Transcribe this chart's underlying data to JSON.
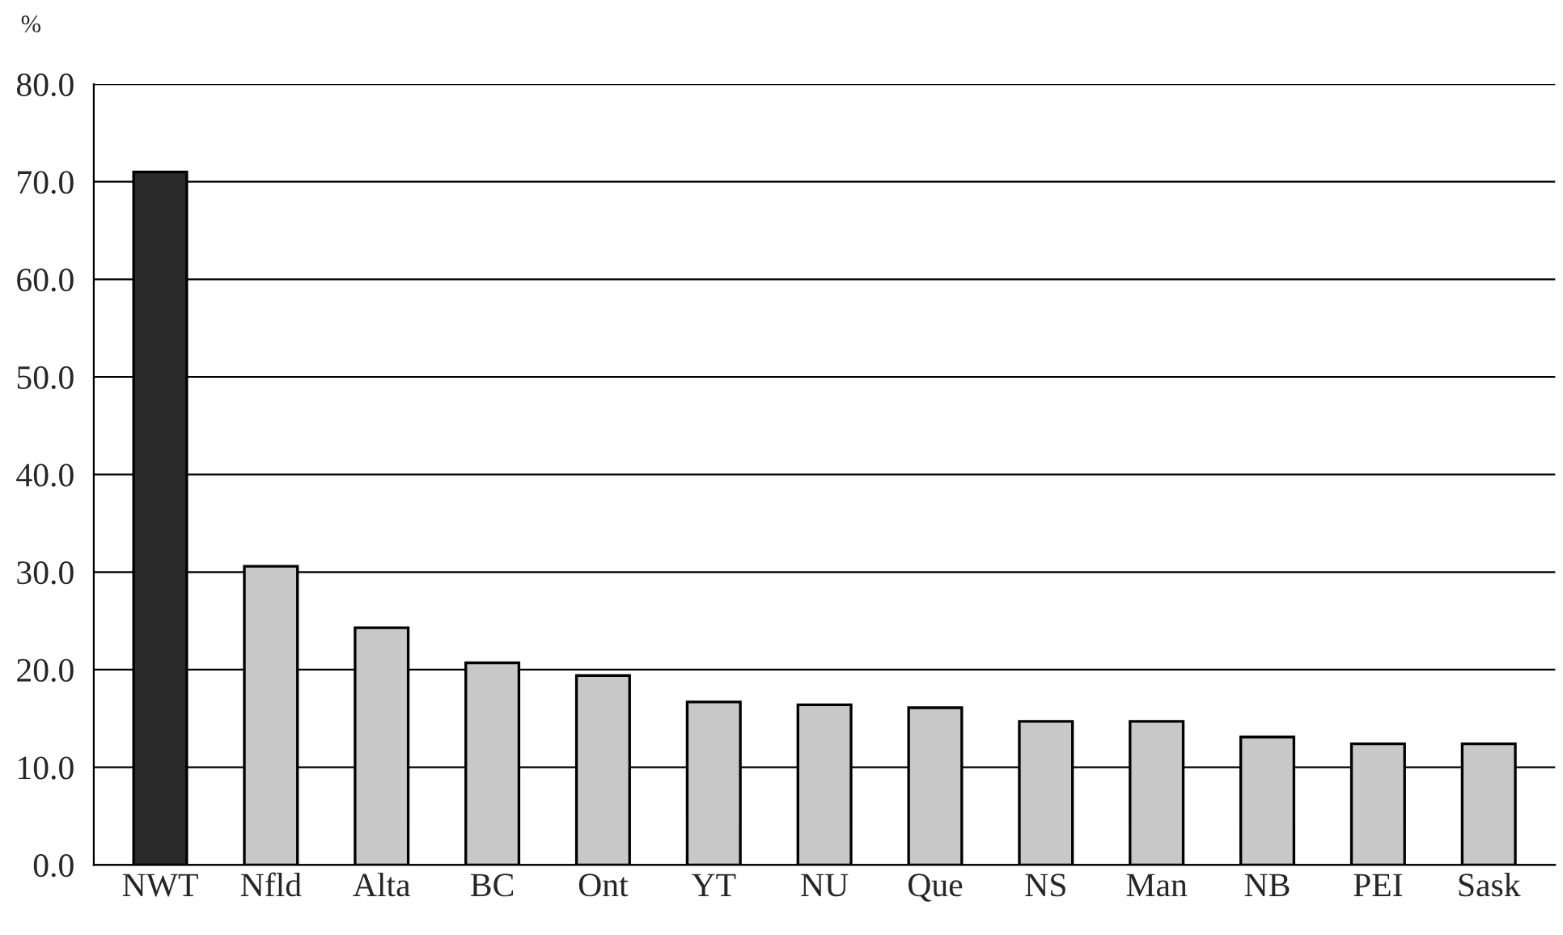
{
  "chart_data": {
    "type": "bar",
    "ylabel": "%",
    "categories": [
      "NWT",
      "Nfld",
      "Alta",
      "BC",
      "Ont",
      "YT",
      "NU",
      "Que",
      "NS",
      "Man",
      "NB",
      "PEI",
      "Sask"
    ],
    "values": [
      71.0,
      30.6,
      24.3,
      20.7,
      19.4,
      16.7,
      16.4,
      16.1,
      14.7,
      14.7,
      13.1,
      12.4,
      12.4
    ],
    "colors": [
      "#2a2a2a",
      "#c8c8c8",
      "#c8c8c8",
      "#c8c8c8",
      "#c8c8c8",
      "#c8c8c8",
      "#c8c8c8",
      "#c8c8c8",
      "#c8c8c8",
      "#c8c8c8",
      "#c8c8c8",
      "#c8c8c8",
      "#c8c8c8"
    ],
    "ylim": [
      0,
      80
    ],
    "yticks": [
      {
        "value": 0,
        "label": "0.0"
      },
      {
        "value": 10,
        "label": "10.0"
      },
      {
        "value": 20,
        "label": "20.0"
      },
      {
        "value": 30,
        "label": "30.0"
      },
      {
        "value": 40,
        "label": "40.0"
      },
      {
        "value": 50,
        "label": "50.0"
      },
      {
        "value": 60,
        "label": "60.0"
      },
      {
        "value": 70,
        "label": "70.0"
      },
      {
        "value": 80,
        "label": "80.0"
      }
    ],
    "grid": "y"
  }
}
